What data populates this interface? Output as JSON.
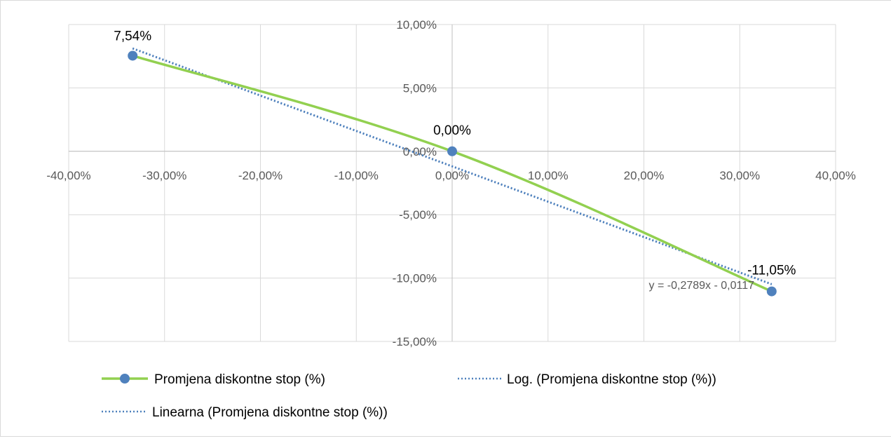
{
  "chart_data": {
    "type": "scatter",
    "x_axis": {
      "range": [
        -40,
        40
      ],
      "ticks": [
        -40,
        -30,
        -20,
        -10,
        0,
        10,
        20,
        30,
        40
      ],
      "tick_labels": [
        "-40,00%",
        "-30,00%",
        "-20,00%",
        "-10,00%",
        "0,00%",
        "10,00%",
        "20,00%",
        "30,00%",
        "40,00%"
      ]
    },
    "y_axis": {
      "range": [
        -15,
        10
      ],
      "ticks": [
        -15,
        -10,
        -5,
        0,
        5,
        10
      ],
      "tick_labels": [
        "-15,00%",
        "-10,00%",
        "-5,00%",
        "0,00%",
        "5,00%",
        "10,00%"
      ]
    },
    "grid": true,
    "legend_position": "bottom",
    "series": [
      {
        "name": "Promjena diskontne stop (%)",
        "style": "smooth-line-with-markers",
        "color": "#92d050",
        "marker_color": "#4f81bd",
        "x": [
          -33.33,
          0,
          33.33
        ],
        "y": [
          7.54,
          0,
          -11.05
        ],
        "data_labels": [
          "7,54%",
          "0,00%",
          "-11,05%"
        ]
      },
      {
        "name": "Log. (Promjena diskontne stop (%))",
        "style": "dotted-trendline",
        "color": "#4f81bd",
        "x": [
          -33.33,
          0,
          33.33
        ],
        "y": [
          8.1,
          -1.2,
          -10.5
        ]
      },
      {
        "name": "Linearna (Promjena diskontne stop (%))",
        "style": "dotted-trendline",
        "color": "#4f81bd",
        "x": [
          -33.33,
          33.33
        ],
        "y": [
          8.13,
          -10.47
        ]
      }
    ],
    "annotations": [
      {
        "text": "y = -0,2789x - 0,0117"
      }
    ]
  }
}
